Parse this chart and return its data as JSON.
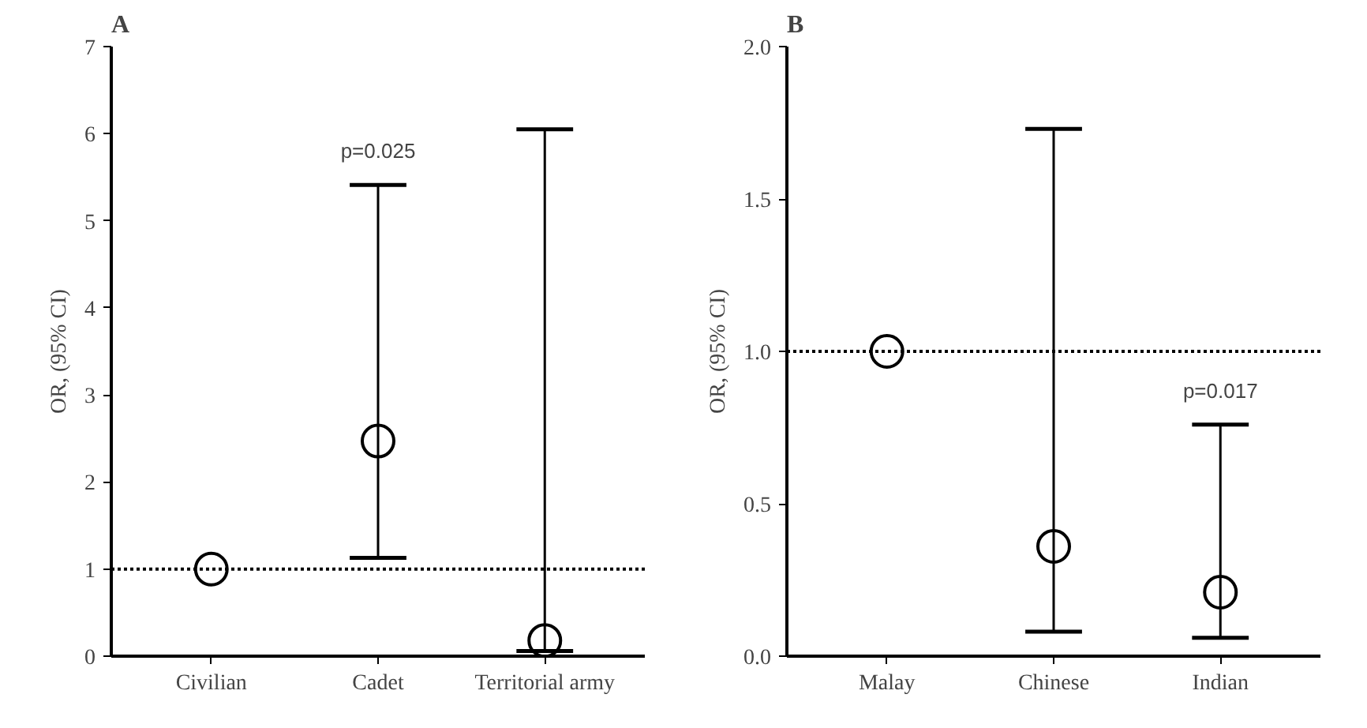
{
  "chart_data": [
    {
      "type": "scatter",
      "title": "A",
      "ylabel": "OR, (95% CI)",
      "categories": [
        "Civilian",
        "Cadet",
        "Territorial army"
      ],
      "marker": "circle",
      "grid": false,
      "series": [
        {
          "color": "#000000",
          "values": [
            1,
            2.47,
            0.18
          ],
          "errors": [
            null,
            [
              1.13,
              5.41
            ],
            [
              0.06,
              6.05
            ]
          ]
        }
      ],
      "ylim": [
        0,
        7
      ],
      "yticks": [
        0,
        1,
        2,
        3,
        4,
        5,
        6,
        7
      ],
      "ref_lines": [
        {
          "axis": "y",
          "value": 1,
          "line_style": "dotted",
          "color": "#000000"
        }
      ],
      "annotations": [
        "p=0.025"
      ]
    },
    {
      "type": "scatter",
      "title": "B",
      "ylabel": "OR, (95% CI)",
      "categories": [
        "Malay",
        "Chinese",
        "Indian"
      ],
      "marker": "circle",
      "grid": false,
      "series": [
        {
          "color": "#000000",
          "values": [
            1,
            0.36,
            0.21
          ],
          "errors": [
            null,
            [
              0.08,
              1.73
            ],
            [
              0.06,
              0.76
            ]
          ]
        }
      ],
      "ylim": [
        0,
        2
      ],
      "yticks": [
        {
          "value": 0,
          "label": "0.0"
        },
        {
          "value": 0.5,
          "label": "0.5"
        },
        {
          "value": 1,
          "label": "1.0"
        },
        {
          "value": 1.5,
          "label": "1.5"
        },
        {
          "value": 2,
          "label": "2.0"
        }
      ],
      "ref_lines": [
        {
          "axis": "y",
          "value": 1,
          "line_style": "dotted",
          "color": "#000000"
        }
      ],
      "annotations": [
        "p=0.017"
      ]
    }
  ]
}
